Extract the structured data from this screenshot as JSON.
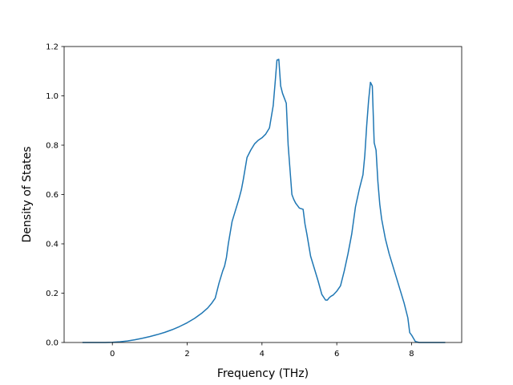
{
  "chart_data": {
    "type": "line",
    "title": "",
    "xlabel": "Frequency (THz)",
    "ylabel": "Density of States",
    "xlim": [
      -1.29,
      9.34
    ],
    "ylim": [
      0,
      1.2
    ],
    "xticks": [
      0,
      2,
      4,
      6,
      8
    ],
    "yticks": [
      0.0,
      0.2,
      0.4,
      0.6,
      0.8,
      1.0,
      1.2
    ],
    "xtick_labels": [
      "0",
      "2",
      "4",
      "6",
      "8"
    ],
    "ytick_labels": [
      "0.0",
      "0.2",
      "0.4",
      "0.6",
      "0.8",
      "1.0",
      "1.2"
    ],
    "grid": false,
    "color": "#1f77b4",
    "series": [
      {
        "x": [
          -0.8,
          -0.2,
          0.0,
          0.2,
          0.4,
          0.6,
          0.8,
          1.0,
          1.2,
          1.4,
          1.6,
          1.8,
          2.0,
          2.2,
          2.4,
          2.55,
          2.65,
          2.75,
          2.85,
          2.95,
          3.0,
          3.05,
          3.1,
          3.2,
          3.3,
          3.38,
          3.45,
          3.5,
          3.6,
          3.7,
          3.8,
          3.9,
          4.0,
          4.1,
          4.2,
          4.3,
          4.35,
          4.4,
          4.45,
          4.5,
          4.55,
          4.6,
          4.65,
          4.7,
          4.75,
          4.8,
          4.85,
          4.9,
          5.0,
          5.1,
          5.15,
          5.2,
          5.3,
          5.4,
          5.5,
          5.6,
          5.7,
          5.75,
          5.8,
          5.85,
          5.9,
          6.0,
          6.1,
          6.2,
          6.3,
          6.4,
          6.5,
          6.6,
          6.7,
          6.75,
          6.8,
          6.85,
          6.9,
          6.95,
          7.0,
          7.05,
          7.1,
          7.15,
          7.2,
          7.3,
          7.4,
          7.5,
          7.6,
          7.7,
          7.8,
          7.9,
          7.95,
          8.0,
          8.1,
          8.2,
          8.9
        ],
        "y": [
          0.0,
          0.0,
          0.001,
          0.003,
          0.006,
          0.011,
          0.017,
          0.024,
          0.032,
          0.041,
          0.052,
          0.065,
          0.08,
          0.098,
          0.12,
          0.14,
          0.158,
          0.18,
          0.24,
          0.29,
          0.31,
          0.345,
          0.4,
          0.49,
          0.54,
          0.58,
          0.62,
          0.66,
          0.75,
          0.78,
          0.805,
          0.82,
          0.83,
          0.845,
          0.87,
          0.96,
          1.05,
          1.145,
          1.148,
          1.04,
          1.01,
          0.99,
          0.97,
          0.8,
          0.7,
          0.6,
          0.58,
          0.565,
          0.545,
          0.54,
          0.48,
          0.44,
          0.35,
          0.3,
          0.25,
          0.195,
          0.172,
          0.172,
          0.182,
          0.188,
          0.192,
          0.208,
          0.23,
          0.29,
          0.36,
          0.44,
          0.55,
          0.62,
          0.68,
          0.76,
          0.88,
          0.98,
          1.055,
          1.04,
          0.81,
          0.78,
          0.65,
          0.56,
          0.5,
          0.42,
          0.36,
          0.31,
          0.26,
          0.21,
          0.16,
          0.1,
          0.04,
          0.03,
          0.004,
          0.0,
          0.0
        ]
      }
    ]
  }
}
